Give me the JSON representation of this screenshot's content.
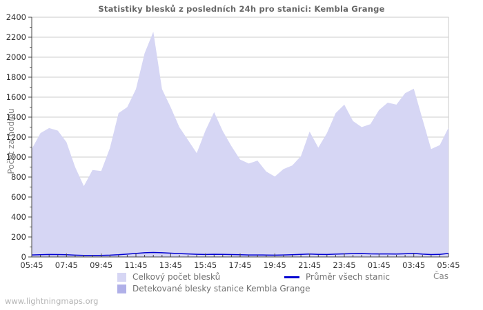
{
  "title": "Statistiky blesků z posledních 24h pro stanici: Kembla Grange",
  "watermark": "www.lightningmaps.org",
  "axes": {
    "y_label": "Počet za hodinu",
    "x_label": "Čas"
  },
  "colors": {
    "area_total": "#d6d6f4",
    "area_station": "#b0b0e8",
    "avg_line": "#0000d0",
    "grid": "#cccccc",
    "frame": "#c8c8c8",
    "axis": "#444444",
    "tick_text": "#333333",
    "title_text": "#666666",
    "legend_text": "#707070",
    "watermark_text": "#b4b4b4"
  },
  "legend": [
    {
      "label": "Celkový počet blesků",
      "swatch": "#d6d6f4",
      "kind": "square"
    },
    {
      "label": "Průměr všech stanic",
      "swatch": "#0000d0",
      "kind": "line"
    },
    {
      "label": "Detekované blesky stanice Kembla Grange",
      "swatch": "#b0b0e8",
      "kind": "square"
    }
  ],
  "chart_data": {
    "type": "area",
    "title": "Statistiky blesků z posledních 24h pro stanici: Kembla Grange",
    "xlabel": "Čas",
    "ylabel": "Počet za hodinu",
    "ylim": [
      0,
      2400
    ],
    "grid": true,
    "legend_position": "bottom",
    "y_ticks": [
      0,
      200,
      400,
      600,
      800,
      1000,
      1200,
      1400,
      1600,
      1800,
      2000,
      2200,
      2400
    ],
    "y_minor_step": 100,
    "x_tick_labels": [
      "05:45",
      "07:45",
      "09:45",
      "11:45",
      "13:45",
      "15:45",
      "17:45",
      "19:45",
      "21:45",
      "23:45",
      "01:45",
      "03:45",
      "05:45"
    ],
    "x_major_every": 4,
    "times": [
      "05:45",
      "06:15",
      "06:45",
      "07:15",
      "07:45",
      "08:15",
      "08:45",
      "09:15",
      "09:45",
      "10:15",
      "10:45",
      "11:15",
      "11:45",
      "12:15",
      "12:45",
      "13:15",
      "13:45",
      "14:15",
      "14:45",
      "15:15",
      "15:45",
      "16:15",
      "16:45",
      "17:15",
      "17:45",
      "18:15",
      "18:45",
      "19:15",
      "19:45",
      "20:15",
      "20:45",
      "21:15",
      "21:45",
      "22:15",
      "22:45",
      "23:15",
      "23:45",
      "00:15",
      "00:45",
      "01:15",
      "01:45",
      "02:15",
      "02:45",
      "03:15",
      "03:45",
      "04:15",
      "04:45",
      "05:15",
      "05:45"
    ],
    "series": [
      {
        "name": "Celkový počet blesků",
        "type": "area",
        "color": "#d6d6f4",
        "values": [
          1080,
          1240,
          1290,
          1265,
          1150,
          900,
          710,
          870,
          860,
          1090,
          1440,
          1500,
          1680,
          2040,
          2255,
          1680,
          1500,
          1300,
          1170,
          1040,
          1265,
          1450,
          1260,
          1110,
          975,
          935,
          965,
          855,
          805,
          880,
          915,
          1010,
          1255,
          1095,
          1240,
          1440,
          1525,
          1360,
          1300,
          1330,
          1470,
          1545,
          1525,
          1640,
          1685,
          1380,
          1080,
          1120,
          1295
        ]
      },
      {
        "name": "Detekované blesky stanice Kembla Grange",
        "type": "area",
        "color": "#b0b0e8",
        "values": [
          0,
          0,
          0,
          0,
          0,
          0,
          0,
          0,
          0,
          0,
          0,
          0,
          0,
          0,
          0,
          0,
          0,
          0,
          0,
          0,
          0,
          0,
          0,
          0,
          0,
          0,
          0,
          0,
          0,
          0,
          0,
          0,
          0,
          0,
          0,
          0,
          0,
          0,
          0,
          0,
          0,
          0,
          0,
          0,
          0,
          0,
          0,
          0,
          0
        ]
      },
      {
        "name": "Průměr všech stanic",
        "type": "line",
        "color": "#0000d0",
        "values": [
          20,
          22,
          25,
          24,
          22,
          18,
          15,
          15,
          16,
          18,
          22,
          28,
          35,
          42,
          45,
          42,
          38,
          34,
          30,
          27,
          25,
          27,
          26,
          24,
          22,
          20,
          20,
          19,
          18,
          20,
          23,
          26,
          29,
          26,
          25,
          28,
          31,
          33,
          34,
          31,
          30,
          30,
          29,
          32,
          35,
          28,
          24,
          26,
          35
        ]
      }
    ]
  }
}
